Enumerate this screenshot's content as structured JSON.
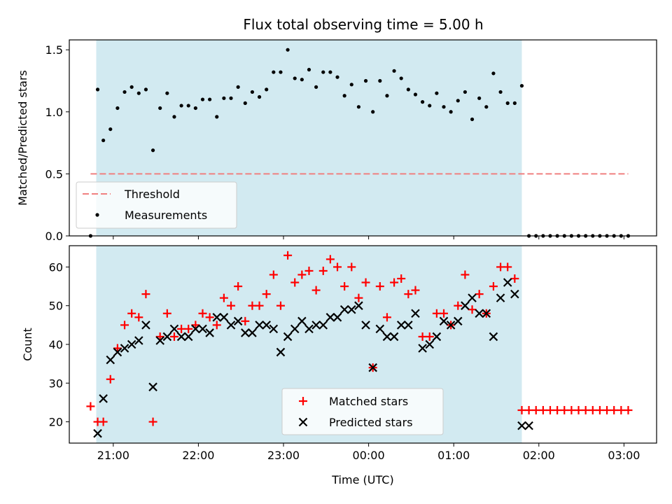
{
  "chart_data": [
    {
      "type": "scatter",
      "title": "Flux total observing time = 5.00 h",
      "xlabel": "",
      "ylabel": "Matched/Predicted stars",
      "ylim": [
        0,
        1.58
      ],
      "yticks": [
        "0.0",
        "0.5",
        "1.0",
        "1.5"
      ],
      "ytick_values": [
        0,
        0.5,
        1.0,
        1.5
      ],
      "x_range": [
        "20:29",
        "03:23"
      ],
      "xticks": [
        "21:00",
        "22:00",
        "23:00",
        "00:00",
        "01:00",
        "02:00",
        "03:00"
      ],
      "observing_window": [
        "20:48",
        "01:48"
      ],
      "colors": {
        "window": "#add8e6",
        "threshold": "#f08080",
        "measurement": "#000000"
      },
      "threshold": {
        "name": "Threshold",
        "value": 0.5,
        "start": "20:44",
        "end": "03:03"
      },
      "legend": {
        "placement": "lower-left",
        "entries": [
          "Threshold",
          "Measurements"
        ]
      },
      "series": [
        {
          "name": "Measurements",
          "x": [
            "20:44",
            "20:49",
            "20:53",
            "20:58",
            "21:03",
            "21:08",
            "21:13",
            "21:18",
            "21:23",
            "21:28",
            "21:33",
            "21:38",
            "21:43",
            "21:48",
            "21:53",
            "21:58",
            "22:03",
            "22:08",
            "22:13",
            "22:18",
            "22:23",
            "22:28",
            "22:33",
            "22:38",
            "22:43",
            "22:48",
            "22:53",
            "22:58",
            "23:03",
            "23:08",
            "23:13",
            "23:18",
            "23:23",
            "23:28",
            "23:33",
            "23:38",
            "23:43",
            "23:48",
            "23:53",
            "23:58",
            "00:03",
            "00:08",
            "00:13",
            "00:18",
            "00:23",
            "00:28",
            "00:33",
            "00:38",
            "00:43",
            "00:48",
            "00:53",
            "00:58",
            "01:03",
            "01:08",
            "01:13",
            "01:18",
            "01:23",
            "01:28",
            "01:33",
            "01:38",
            "01:43",
            "01:48",
            "01:53",
            "01:58",
            "02:03",
            "02:08",
            "02:13",
            "02:18",
            "02:23",
            "02:28",
            "02:33",
            "02:38",
            "02:43",
            "02:48",
            "02:53",
            "02:58",
            "03:03"
          ],
          "y": [
            0.0,
            1.18,
            0.77,
            0.86,
            1.03,
            1.16,
            1.2,
            1.15,
            1.18,
            0.69,
            1.03,
            1.15,
            0.96,
            1.05,
            1.05,
            1.03,
            1.1,
            1.1,
            0.96,
            1.11,
            1.11,
            1.2,
            1.07,
            1.16,
            1.12,
            1.18,
            1.32,
            1.32,
            1.5,
            1.27,
            1.26,
            1.34,
            1.2,
            1.32,
            1.32,
            1.28,
            1.13,
            1.22,
            1.04,
            1.25,
            1.0,
            1.25,
            1.13,
            1.33,
            1.27,
            1.18,
            1.14,
            1.08,
            1.05,
            1.15,
            1.04,
            1.0,
            1.09,
            1.16,
            0.94,
            1.11,
            1.04,
            1.31,
            1.16,
            1.07,
            1.07,
            1.21,
            0.0,
            0.0,
            0.0,
            0.0,
            0.0,
            0.0,
            0.0,
            0.0,
            0.0,
            0.0,
            0.0,
            0.0,
            0.0,
            0.0,
            0.0
          ]
        }
      ]
    },
    {
      "type": "scatter",
      "title": "",
      "xlabel": "Time (UTC)",
      "ylabel": "Count",
      "ylim": [
        14.5,
        65.5
      ],
      "yticks": [
        "20",
        "30",
        "40",
        "50",
        "60"
      ],
      "ytick_values": [
        20,
        30,
        40,
        50,
        60
      ],
      "x_range": [
        "20:29",
        "03:23"
      ],
      "xticks": [
        "21:00",
        "22:00",
        "23:00",
        "00:00",
        "01:00",
        "02:00",
        "03:00"
      ],
      "observing_window": [
        "20:48",
        "01:48"
      ],
      "colors": {
        "window": "#add8e6",
        "matched": "#ff0000",
        "predicted": "#000000"
      },
      "legend": {
        "placement": "lower-center",
        "entries": [
          "Matched stars",
          "Predicted stars"
        ]
      },
      "series": [
        {
          "name": "Matched stars",
          "x": [
            "20:44",
            "20:49",
            "20:53",
            "20:58",
            "21:03",
            "21:08",
            "21:13",
            "21:18",
            "21:23",
            "21:28",
            "21:33",
            "21:38",
            "21:43",
            "21:48",
            "21:53",
            "21:58",
            "22:03",
            "22:08",
            "22:13",
            "22:18",
            "22:23",
            "22:28",
            "22:33",
            "22:38",
            "22:43",
            "22:48",
            "22:53",
            "22:58",
            "23:03",
            "23:08",
            "23:13",
            "23:18",
            "23:23",
            "23:28",
            "23:33",
            "23:38",
            "23:43",
            "23:48",
            "23:53",
            "23:58",
            "00:03",
            "00:08",
            "00:13",
            "00:18",
            "00:23",
            "00:28",
            "00:33",
            "00:38",
            "00:43",
            "00:48",
            "00:53",
            "00:58",
            "01:03",
            "01:08",
            "01:13",
            "01:18",
            "01:23",
            "01:28",
            "01:33",
            "01:38",
            "01:43",
            "01:48",
            "01:53",
            "01:58",
            "02:03",
            "02:08",
            "02:13",
            "02:18",
            "02:23",
            "02:28",
            "02:33",
            "02:38",
            "02:43",
            "02:48",
            "02:53",
            "02:58",
            "03:03"
          ],
          "y": [
            24,
            20,
            20,
            31,
            39,
            45,
            48,
            47,
            53,
            20,
            42,
            48,
            42,
            44,
            44,
            45,
            48,
            47,
            45,
            52,
            50,
            55,
            46,
            50,
            50,
            53,
            58,
            50,
            63,
            56,
            58,
            59,
            54,
            59,
            62,
            60,
            55,
            60,
            52,
            56,
            34,
            55,
            47,
            56,
            57,
            53,
            54,
            42,
            42,
            48,
            48,
            45,
            50,
            58,
            49,
            53,
            48,
            55,
            60,
            60,
            57,
            23,
            23,
            23,
            23,
            23,
            23,
            23,
            23,
            23,
            23,
            23,
            23,
            23,
            23,
            23,
            23
          ]
        },
        {
          "name": "Predicted stars",
          "x": [
            "20:49",
            "20:53",
            "20:58",
            "21:03",
            "21:08",
            "21:13",
            "21:18",
            "21:23",
            "21:28",
            "21:33",
            "21:38",
            "21:43",
            "21:48",
            "21:53",
            "21:58",
            "22:03",
            "22:08",
            "22:13",
            "22:18",
            "22:23",
            "22:28",
            "22:33",
            "22:38",
            "22:43",
            "22:48",
            "22:53",
            "22:58",
            "23:03",
            "23:08",
            "23:13",
            "23:18",
            "23:23",
            "23:28",
            "23:33",
            "23:38",
            "23:43",
            "23:48",
            "23:53",
            "23:58",
            "00:03",
            "00:08",
            "00:13",
            "00:18",
            "00:23",
            "00:28",
            "00:33",
            "00:38",
            "00:43",
            "00:48",
            "00:53",
            "00:58",
            "01:03",
            "01:08",
            "01:13",
            "01:18",
            "01:23",
            "01:28",
            "01:33",
            "01:38",
            "01:43",
            "01:48",
            "01:53"
          ],
          "y": [
            17,
            26,
            36,
            38,
            39,
            40,
            41,
            45,
            29,
            41,
            42,
            44,
            42,
            42,
            44,
            44,
            43,
            47,
            47,
            45,
            46,
            43,
            43,
            45,
            45,
            44,
            38,
            42,
            44,
            46,
            44,
            45,
            45,
            47,
            47,
            49,
            49,
            50,
            45,
            34,
            44,
            42,
            42,
            45,
            45,
            48,
            39,
            40,
            42,
            46,
            45,
            46,
            50,
            52,
            48,
            48,
            42,
            52,
            56,
            53,
            19,
            19
          ]
        }
      ]
    }
  ]
}
